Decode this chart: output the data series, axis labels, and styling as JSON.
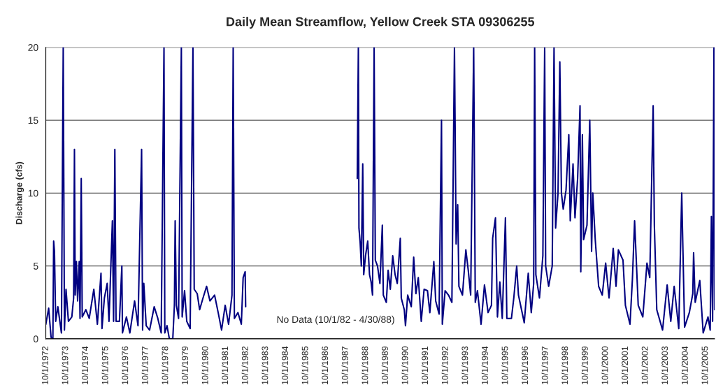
{
  "chart_data": {
    "type": "line",
    "title": "Daily Mean Streamflow, Yellow Creek STA 09306255",
    "ylabel": "Discharge (cfs)",
    "annotations": [
      "No Data (10/1/82 - 4/30/88)"
    ],
    "xlim": [
      "1972-10-01",
      "2006-03-15"
    ],
    "ylim": [
      0,
      20
    ],
    "yticks": [
      0,
      5,
      10,
      15,
      20
    ],
    "xticks": [
      {
        "value": "1972-10-01",
        "label": "10/1/1972"
      },
      {
        "value": "1973-10-01",
        "label": "10/1/1973"
      },
      {
        "value": "1974-10-01",
        "label": "10/1/1974"
      },
      {
        "value": "1975-10-01",
        "label": "10/1/1975"
      },
      {
        "value": "1976-10-01",
        "label": "10/1/1976"
      },
      {
        "value": "1977-10-01",
        "label": "10/1/1977"
      },
      {
        "value": "1978-10-01",
        "label": "10/1/1978"
      },
      {
        "value": "1979-10-01",
        "label": "10/1/1979"
      },
      {
        "value": "1980-10-01",
        "label": "10/1/1980"
      },
      {
        "value": "1981-10-01",
        "label": "10/1/1981"
      },
      {
        "value": "1982-10-01",
        "label": "10/1/1982"
      },
      {
        "value": "1983-10-01",
        "label": "10/1/1983"
      },
      {
        "value": "1984-10-01",
        "label": "10/1/1984"
      },
      {
        "value": "1985-10-01",
        "label": "10/1/1985"
      },
      {
        "value": "1986-10-01",
        "label": "10/1/1986"
      },
      {
        "value": "1987-10-01",
        "label": "10/1/1987"
      },
      {
        "value": "1988-10-01",
        "label": "10/1/1988"
      },
      {
        "value": "1989-10-01",
        "label": "10/1/1989"
      },
      {
        "value": "1990-10-01",
        "label": "10/1/1990"
      },
      {
        "value": "1991-10-01",
        "label": "10/1/1991"
      },
      {
        "value": "1992-10-01",
        "label": "10/1/1992"
      },
      {
        "value": "1993-10-01",
        "label": "10/1/1993"
      },
      {
        "value": "1994-10-01",
        "label": "10/1/1994"
      },
      {
        "value": "1995-10-01",
        "label": "10/1/1995"
      },
      {
        "value": "1996-10-01",
        "label": "10/1/1996"
      },
      {
        "value": "1997-10-01",
        "label": "10/1/1997"
      },
      {
        "value": "1998-10-01",
        "label": "10/1/1998"
      },
      {
        "value": "1999-10-01",
        "label": "10/1/1999"
      },
      {
        "value": "2000-10-01",
        "label": "10/1/2000"
      },
      {
        "value": "2001-10-01",
        "label": "10/1/2001"
      },
      {
        "value": "2002-10-01",
        "label": "10/1/2002"
      },
      {
        "value": "2003-10-01",
        "label": "10/1/2003"
      },
      {
        "value": "2004-10-01",
        "label": "10/1/2004"
      },
      {
        "value": "2005-10-01",
        "label": "10/1/2005"
      }
    ],
    "grid": "y",
    "legend": false,
    "line_style": "solid",
    "series": [
      {
        "color": "#000080",
        "x": [
          "1972-10-01",
          "1972-11-22",
          "1973-01-05",
          "1973-02-07",
          "1973-02-21",
          "1973-03-08",
          "1973-03-30",
          "1973-05-09",
          "1973-07-13",
          "1973-08-15",
          "1973-09-06",
          "1973-10-05",
          "1973-11-18",
          "1974-01-19",
          "1974-02-21",
          "1974-03-08",
          "1974-03-22",
          "1974-04-13",
          "1974-05-05",
          "1974-06-03",
          "1974-06-18",
          "1974-07-10",
          "1974-07-28",
          "1974-10-02",
          "1974-12-03",
          "1975-02-25",
          "1975-05-01",
          "1975-07-06",
          "1975-07-24",
          "1975-09-06",
          "1975-10-27",
          "1975-11-29",
          "1976-01-30",
          "1976-02-21",
          "1976-03-15",
          "1976-04-06",
          "1976-06-07",
          "1976-07-21",
          "1976-08-01",
          "1976-10-13",
          "1976-12-14",
          "1977-03-11",
          "1977-05-12",
          "1977-07-17",
          "1977-08-04",
          "1977-08-26",
          "1977-10-09",
          "1977-12-10",
          "1978-03-04",
          "1978-05-09",
          "1978-07-10",
          "1978-08-30",
          "1978-09-14",
          "1978-10-24",
          "1978-12-06",
          "1979-02-07",
          "1979-03-08",
          "1979-03-22",
          "1979-04-13",
          "1979-05-23",
          "1979-07-13",
          "1979-07-28",
          "1979-09-10",
          "1979-10-20",
          "1979-12-21",
          "1980-02-10",
          "1980-03-04",
          "1980-04-28",
          "1980-06-11",
          "1980-08-12",
          "1980-10-16",
          "1980-12-17",
          "1981-03-11",
          "1981-05-16",
          "1981-07-17",
          "1981-09-21",
          "1981-11-22",
          "1982-01-23",
          "1982-02-14",
          "1982-03-08",
          "1982-05-12",
          "1982-07-13",
          "1982-08-15",
          "1982-09-21",
          "1982-09-30",
          "1985-06-01",
          "1988-04-30",
          "1988-05-09",
          "1988-05-20",
          "1988-05-31",
          "1988-06-22",
          "1988-07-13",
          "1988-08-08",
          "1988-08-26",
          "1988-09-28",
          "1988-11-07",
          "1988-12-10",
          "1989-01-08",
          "1989-02-03",
          "1989-03-04",
          "1989-03-26",
          "1989-05-05",
          "1989-06-18",
          "1989-08-01",
          "1989-08-19",
          "1989-10-13",
          "1989-11-15",
          "1989-12-25",
          "1990-02-07",
          "1990-03-22",
          "1990-05-01",
          "1990-06-25",
          "1990-07-13",
          "1990-09-06",
          "1990-09-28",
          "1990-11-07",
          "1991-01-12",
          "1991-02-25",
          "1991-04-06",
          "1991-05-20",
          "1991-07-13",
          "1991-09-03",
          "1991-11-04",
          "1991-12-17",
          "1992-02-28",
          "1992-04-02",
          "1992-06-03",
          "1992-07-17",
          "1992-08-01",
          "1992-09-21",
          "1992-11-22",
          "1993-01-23",
          "1993-03-11",
          "1993-04-10",
          "1993-05-09",
          "1993-05-31",
          "1993-08-04",
          "1993-10-05",
          "1993-11-18",
          "1994-01-01",
          "1994-02-25",
          "1994-03-26",
          "1994-05-05",
          "1994-07-10",
          "1994-09-10",
          "1994-11-15",
          "1995-01-16",
          "1995-02-07",
          "1995-03-30",
          "1995-05-05",
          "1995-06-18",
          "1995-08-01",
          "1995-09-28",
          "1995-10-24",
          "1996-01-16",
          "1996-02-28",
          "1996-04-21",
          "1996-05-23",
          "1996-09-06",
          "1996-11-18",
          "1997-01-12",
          "1997-02-25",
          "1997-03-15",
          "1997-04-06",
          "1997-06-11",
          "1997-08-12",
          "1997-09-14",
          "1997-10-02",
          "1997-11-26",
          "1998-01-30",
          "1998-03-04",
          "1998-04-02",
          "1998-05-16",
          "1998-06-18",
          "1998-07-17",
          "1998-08-19",
          "1998-10-09",
          "1998-11-29",
          "1998-12-25",
          "1999-02-14",
          "1999-03-22",
          "1999-05-09",
          "1999-06-22",
          "1999-07-06",
          "1999-08-04",
          "1999-08-26",
          "1999-10-27",
          "1999-12-17",
          "2000-01-19",
          "2000-02-10",
          "2000-03-26",
          "2000-05-27",
          "2000-08-01",
          "2000-10-02",
          "2000-12-03",
          "2001-02-17",
          "2001-04-10",
          "2001-05-23",
          "2001-08-15",
          "2001-09-28",
          "2001-12-21",
          "2002-02-03",
          "2002-03-15",
          "2002-05-20",
          "2002-08-12",
          "2002-10-27",
          "2002-12-17",
          "2003-02-17",
          "2003-03-11",
          "2003-04-24",
          "2003-08-08",
          "2003-10-31",
          "2004-01-05",
          "2004-03-07",
          "2004-05-30",
          "2004-07-23",
          "2004-09-13",
          "2004-12-09",
          "2005-02-10",
          "2005-02-25",
          "2005-03-26",
          "2005-06-18",
          "2005-08-19",
          "2005-11-15",
          "2005-12-25",
          "2006-01-16",
          "2006-02-07",
          "2006-03-04",
          "2006-03-15"
        ],
        "values": [
          1.0,
          2.1,
          0.1,
          0,
          6.7,
          6.0,
          1.2,
          2.2,
          0.4,
          20,
          0.6,
          3.4,
          1.2,
          1.5,
          2.8,
          13.0,
          3.0,
          5.3,
          2.6,
          5.3,
          1.4,
          11.0,
          1.5,
          2.0,
          1.4,
          3.4,
          1.0,
          4.5,
          0.7,
          2.8,
          3.8,
          1.2,
          8.1,
          1.2,
          13.0,
          1.2,
          1.2,
          5.0,
          0.4,
          1.5,
          0.4,
          2.6,
          0.9,
          13.0,
          0.6,
          3.8,
          0.9,
          0.6,
          2.2,
          1.4,
          0.4,
          20,
          0.4,
          0.9,
          0,
          0,
          2.3,
          8.1,
          2.3,
          1.4,
          20,
          1.5,
          3.3,
          1.2,
          0.7,
          20,
          3.4,
          3.1,
          2.0,
          2.8,
          3.6,
          2.6,
          3.0,
          1.8,
          0.6,
          2.3,
          1.0,
          3.0,
          20,
          1.4,
          1.8,
          1.0,
          4.2,
          4.6,
          2.2,
          null,
          11.0,
          15.0,
          20,
          7.6,
          6.6,
          5.0,
          12.0,
          4.4,
          5.7,
          6.7,
          4.4,
          3.9,
          3.0,
          20,
          5.4,
          5.0,
          3.8,
          7.8,
          3.0,
          2.5,
          4.7,
          3.4,
          5.7,
          4.4,
          3.8,
          6.9,
          2.8,
          2.0,
          0.9,
          3.0,
          2.2,
          5.6,
          3.1,
          4.2,
          1.2,
          3.4,
          3.3,
          1.8,
          5.3,
          2.6,
          1.7,
          15.0,
          1.0,
          3.3,
          3.0,
          2.5,
          20,
          6.5,
          9.2,
          3.6,
          3.0,
          6.1,
          4.7,
          3.0,
          20,
          2.5,
          3.3,
          1.0,
          3.7,
          1.8,
          2.3,
          6.9,
          8.3,
          1.5,
          3.9,
          1.4,
          8.3,
          1.4,
          1.4,
          2.8,
          5.0,
          3.0,
          1.1,
          4.5,
          1.8,
          3.8,
          20,
          4.4,
          2.8,
          5.7,
          20,
          5.0,
          3.6,
          5.0,
          20,
          7.6,
          10.0,
          19.0,
          10.0,
          8.9,
          10.2,
          14.0,
          8.1,
          12.0,
          8.3,
          11.0,
          16.0,
          4.6,
          14.0,
          6.8,
          7.8,
          15.0,
          6.0,
          10.0,
          6.8,
          3.6,
          3.0,
          5.2,
          2.8,
          6.2,
          3.6,
          6.1,
          5.4,
          2.3,
          1.0,
          4.1,
          8.1,
          2.3,
          1.5,
          5.2,
          4.2,
          16.0,
          7.8,
          2.0,
          0.6,
          3.7,
          1.2,
          3.6,
          0.7,
          10.0,
          0.8,
          1.8,
          3.1,
          5.9,
          2.5,
          4.0,
          0.4,
          1.5,
          0.6,
          8.4,
          1.2,
          20,
          2.0
        ]
      }
    ]
  }
}
